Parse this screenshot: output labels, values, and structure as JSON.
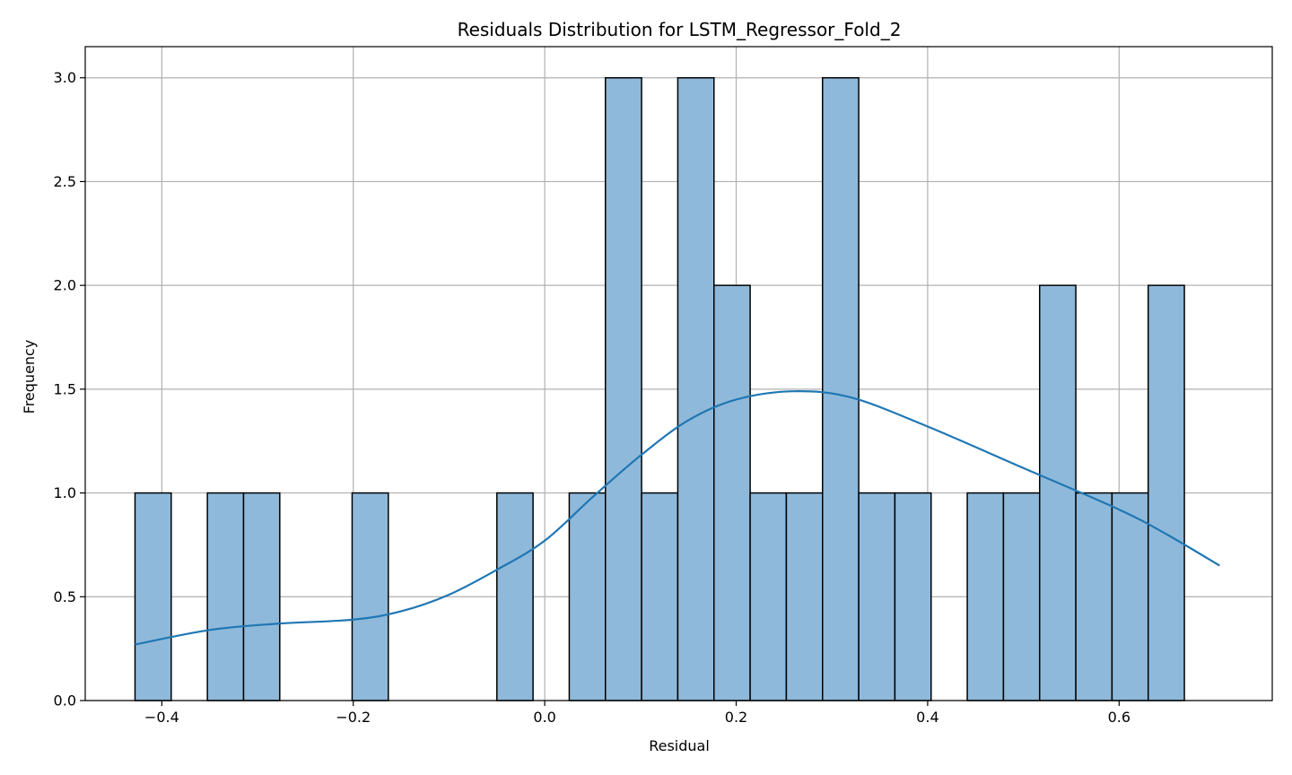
{
  "chart_data": {
    "type": "bar",
    "subtype": "histogram-with-kde",
    "title": "Residuals Distribution for LSTM_Regressor_Fold_2",
    "xlabel": "Residual",
    "ylabel": "Frequency",
    "xlim": [
      -0.48,
      0.76
    ],
    "ylim": [
      0,
      3.15
    ],
    "grid": true,
    "x_ticks": [
      -0.4,
      -0.2,
      0.0,
      0.2,
      0.4,
      0.6
    ],
    "x_tick_labels": [
      "−0.4",
      "−0.2",
      "0.0",
      "0.2",
      "0.4",
      "0.6"
    ],
    "y_ticks": [
      0.0,
      0.5,
      1.0,
      1.5,
      2.0,
      2.5,
      3.0
    ],
    "y_tick_labels": [
      "0.0",
      "0.5",
      "1.0",
      "1.5",
      "2.0",
      "2.5",
      "3.0"
    ],
    "bin_start": -0.428,
    "bin_width": 0.0378,
    "counts": [
      1,
      0,
      1,
      1,
      0,
      0,
      1,
      0,
      0,
      0,
      1,
      0,
      1,
      3,
      1,
      3,
      2,
      1,
      1,
      3,
      1,
      1,
      0,
      1,
      1,
      2,
      1,
      1,
      2,
      0
    ],
    "kde": {
      "x": [
        -0.428,
        -0.35,
        -0.28,
        -0.2,
        -0.15,
        -0.1,
        -0.05,
        0.0,
        0.05,
        0.1,
        0.15,
        0.2,
        0.26,
        0.32,
        0.4,
        0.5,
        0.6,
        0.65,
        0.705
      ],
      "y": [
        0.27,
        0.34,
        0.37,
        0.39,
        0.43,
        0.51,
        0.63,
        0.77,
        0.98,
        1.18,
        1.35,
        1.45,
        1.49,
        1.46,
        1.32,
        1.12,
        0.92,
        0.8,
        0.65
      ]
    },
    "colors": {
      "bar_fill": "#8fb9da",
      "bar_edge": "#000000",
      "kde_line": "#1f77b4",
      "grid": "#b0b0b0"
    }
  }
}
